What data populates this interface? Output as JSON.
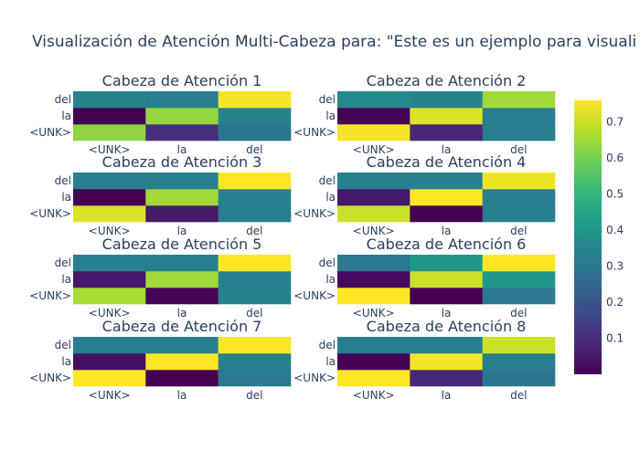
{
  "chart_data": {
    "type": "heatmap",
    "title": "Visualización de Atención Multi-Cabeza para: \"Este es un ejemplo para visuali",
    "x_tokens": [
      "<UNK>",
      "la",
      "del"
    ],
    "y_tokens": [
      "<UNK>",
      "la",
      "del"
    ],
    "colorscale": "viridis",
    "zmin": 0.0,
    "zmax": 0.76,
    "colorbar_ticks": [
      0.1,
      0.2,
      0.3,
      0.4,
      0.5,
      0.6,
      0.7
    ],
    "heads": [
      {
        "title": "Cabeza de Atención 1",
        "z": [
          [
            0.63,
            0.1,
            0.3
          ],
          [
            0.0,
            0.64,
            0.34
          ],
          [
            0.34,
            0.32,
            0.75
          ]
        ]
      },
      {
        "title": "Cabeza de Atención 2",
        "z": [
          [
            0.75,
            0.08,
            0.32
          ],
          [
            0.01,
            0.72,
            0.32
          ],
          [
            0.36,
            0.34,
            0.65
          ]
        ]
      },
      {
        "title": "Cabeza de Atención 3",
        "z": [
          [
            0.72,
            0.05,
            0.32
          ],
          [
            0.0,
            0.65,
            0.33
          ],
          [
            0.33,
            0.33,
            0.76
          ]
        ]
      },
      {
        "title": "Cabeza de Atención 4",
        "z": [
          [
            0.7,
            0.0,
            0.32
          ],
          [
            0.05,
            0.76,
            0.32
          ],
          [
            0.33,
            0.33,
            0.74
          ]
        ]
      },
      {
        "title": "Cabeza de Atención 5",
        "z": [
          [
            0.66,
            0.01,
            0.34
          ],
          [
            0.05,
            0.65,
            0.33
          ],
          [
            0.33,
            0.33,
            0.76
          ]
        ]
      },
      {
        "title": "Cabeza de Atención 6",
        "z": [
          [
            0.76,
            0.0,
            0.31
          ],
          [
            0.02,
            0.7,
            0.4
          ],
          [
            0.31,
            0.4,
            0.76
          ]
        ]
      },
      {
        "title": "Cabeza de Atención 7",
        "z": [
          [
            0.76,
            0.0,
            0.31
          ],
          [
            0.03,
            0.76,
            0.33
          ],
          [
            0.33,
            0.33,
            0.76
          ]
        ]
      },
      {
        "title": "Cabeza de Atención 8",
        "z": [
          [
            0.76,
            0.08,
            0.3
          ],
          [
            0.0,
            0.75,
            0.32
          ],
          [
            0.32,
            0.32,
            0.7
          ]
        ]
      }
    ]
  }
}
